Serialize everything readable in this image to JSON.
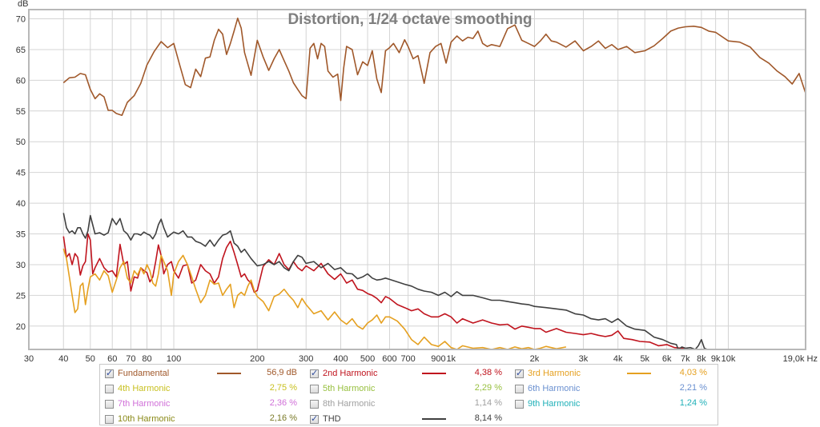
{
  "chart_data": {
    "type": "line",
    "title": "Distortion, 1/24 octave smoothing",
    "xlabel": "Hz",
    "ylabel": "dB",
    "xscale": "log",
    "xlim": [
      30,
      19000
    ],
    "ylim": [
      16.2,
      71.5
    ],
    "grid": true,
    "x_ticks": [
      30,
      40,
      50,
      60,
      70,
      80,
      90,
      100,
      200,
      300,
      400,
      500,
      600,
      700,
      900,
      1000,
      2000,
      3000,
      4000,
      5000,
      6000,
      7000,
      8000,
      9000,
      10000,
      19000
    ],
    "x_tick_labels": [
      "30",
      "40",
      "50",
      "60",
      "70",
      "80",
      "",
      "100",
      "200",
      "300",
      "400",
      "500",
      "600",
      "700",
      "900",
      "1k",
      "2k",
      "3k",
      "4k",
      "5k",
      "6k",
      "7k",
      "8k",
      "9k",
      "10k",
      "19,0k Hz"
    ],
    "y_ticks": [
      20,
      25,
      30,
      35,
      40,
      45,
      50,
      55,
      60,
      65,
      70
    ],
    "y_tick_labels": [
      "20",
      "25",
      "30",
      "35",
      "40",
      "45",
      "50",
      "55",
      "60",
      "65",
      "70"
    ],
    "series": [
      {
        "name": "Fundamental",
        "color": "#a0582a",
        "x": [
          40,
          42,
          44,
          46,
          48,
          50,
          52,
          54,
          56,
          58,
          60,
          62,
          65,
          68,
          72,
          76,
          80,
          85,
          90,
          95,
          100,
          105,
          110,
          115,
          120,
          125,
          130,
          135,
          140,
          145,
          150,
          155,
          160,
          165,
          170,
          175,
          180,
          190,
          200,
          210,
          220,
          230,
          240,
          250,
          260,
          270,
          280,
          290,
          300,
          310,
          320,
          330,
          340,
          350,
          360,
          375,
          390,
          400,
          410,
          420,
          440,
          460,
          480,
          500,
          520,
          540,
          560,
          580,
          600,
          620,
          650,
          680,
          700,
          730,
          760,
          800,
          840,
          880,
          920,
          960,
          1000,
          1050,
          1100,
          1150,
          1200,
          1250,
          1300,
          1350,
          1400,
          1500,
          1600,
          1700,
          1800,
          1900,
          2000,
          2100,
          2200,
          2300,
          2400,
          2600,
          2800,
          3000,
          3200,
          3400,
          3600,
          3800,
          4000,
          4300,
          4600,
          5000,
          5400,
          5800,
          6200,
          6600,
          7000,
          7500,
          8000,
          8500,
          9000,
          10000,
          11000,
          12000,
          13000,
          14000,
          15000,
          16000,
          17000,
          18000,
          19000
        ],
        "y": [
          59.6,
          60.4,
          60.5,
          61.1,
          60.9,
          58.5,
          57.0,
          57.8,
          57.3,
          55.1,
          55.1,
          54.6,
          54.3,
          56.4,
          57.5,
          59.5,
          62.5,
          64.7,
          66.3,
          65.3,
          66.0,
          62.5,
          59.3,
          58.8,
          61.8,
          60.6,
          63.6,
          63.8,
          66.5,
          68.3,
          67.5,
          64.2,
          66.0,
          68.0,
          70.1,
          68.5,
          64.5,
          60.8,
          66.5,
          63.8,
          61.6,
          63.5,
          65.0,
          63.2,
          61.5,
          59.6,
          58.5,
          57.5,
          57.0,
          65.2,
          66.0,
          63.5,
          66.0,
          65.5,
          61.5,
          60.5,
          61.0,
          56.7,
          62.0,
          65.5,
          65.0,
          60.9,
          63.0,
          62.4,
          64.8,
          60.2,
          58.0,
          64.8,
          65.3,
          66.0,
          64.5,
          66.6,
          65.5,
          63.5,
          64.0,
          59.5,
          64.5,
          65.5,
          66.0,
          62.8,
          66.2,
          67.2,
          66.4,
          67.0,
          66.8,
          68.0,
          66.0,
          65.5,
          65.8,
          65.5,
          68.4,
          69.0,
          66.5,
          66.0,
          65.5,
          66.4,
          67.5,
          66.4,
          66.2,
          65.4,
          66.4,
          64.8,
          65.5,
          66.4,
          65.2,
          65.8,
          65.0,
          65.5,
          64.5,
          64.8,
          65.6,
          66.8,
          68.0,
          68.5,
          68.7,
          68.8,
          68.6,
          68.0,
          67.8,
          66.4,
          66.2,
          65.4,
          63.7,
          62.8,
          61.5,
          60.6,
          59.4,
          61.1,
          57.9
        ]
      },
      {
        "name": "2nd Harmonic",
        "color": "#c0141e",
        "x": [
          40,
          41,
          42,
          43,
          44,
          45,
          46,
          47,
          48,
          49,
          50,
          51,
          52,
          54,
          56,
          58,
          60,
          62,
          64,
          66,
          68,
          70,
          72,
          74,
          76,
          78,
          80,
          82,
          84,
          86,
          88,
          90,
          92,
          95,
          98,
          100,
          104,
          108,
          112,
          116,
          120,
          125,
          130,
          135,
          140,
          145,
          150,
          155,
          160,
          165,
          170,
          175,
          180,
          185,
          190,
          195,
          200,
          210,
          220,
          230,
          240,
          250,
          260,
          270,
          280,
          290,
          300,
          320,
          340,
          360,
          380,
          400,
          420,
          440,
          460,
          480,
          500,
          520,
          540,
          560,
          580,
          600,
          640,
          680,
          720,
          760,
          800,
          850,
          900,
          950,
          1000,
          1050,
          1100,
          1200,
          1300,
          1400,
          1500,
          1600,
          1700,
          1800,
          1900,
          2000,
          2100,
          2200,
          2400,
          2600,
          2800,
          3000,
          3200,
          3400,
          3600,
          3800,
          4000,
          4200,
          4500,
          4800,
          5200,
          5600,
          6000,
          6400,
          6800,
          7200
        ],
        "y": [
          34.6,
          31.2,
          31.8,
          30.0,
          31.8,
          31.2,
          28.3,
          29.8,
          30.5,
          35.0,
          34.0,
          28.5,
          29.5,
          31.0,
          29.5,
          28.8,
          29.0,
          28.0,
          33.3,
          30.0,
          30.5,
          25.7,
          28.0,
          27.8,
          29.5,
          29.0,
          28.7,
          27.2,
          28.0,
          30.5,
          33.2,
          31.5,
          28.5,
          30.0,
          30.5,
          29.0,
          27.8,
          29.8,
          30.0,
          27.0,
          27.5,
          30.0,
          29.0,
          28.5,
          27.0,
          28.0,
          31.0,
          32.8,
          33.8,
          32.0,
          30.0,
          28.0,
          28.5,
          27.5,
          27.0,
          25.5,
          25.8,
          29.7,
          30.8,
          30.0,
          31.8,
          30.0,
          29.2,
          30.5,
          29.5,
          29.0,
          29.8,
          29.0,
          30.2,
          28.5,
          27.6,
          28.5,
          27.0,
          27.5,
          26.0,
          25.8,
          25.3,
          25.0,
          24.5,
          23.8,
          24.8,
          24.5,
          23.5,
          23.0,
          22.5,
          22.8,
          22.0,
          21.5,
          21.5,
          22.0,
          21.5,
          20.5,
          21.2,
          20.5,
          21.0,
          20.5,
          20.2,
          20.3,
          19.5,
          20.0,
          19.8,
          19.6,
          19.6,
          19.0,
          19.6,
          19.0,
          18.8,
          18.6,
          18.8,
          18.5,
          18.3,
          18.5,
          19.2,
          18.0,
          17.8,
          17.5,
          17.4,
          16.8,
          17.0,
          16.5,
          16.4,
          16.2
        ]
      },
      {
        "name": "3rd Harmonic",
        "color": "#e5a020",
        "x": [
          40,
          41,
          42,
          43,
          44,
          45,
          46,
          47,
          48,
          49,
          50,
          52,
          54,
          56,
          58,
          60,
          62,
          64,
          66,
          68,
          70,
          72,
          74,
          76,
          78,
          80,
          82,
          84,
          86,
          88,
          90,
          92,
          95,
          98,
          100,
          104,
          108,
          112,
          116,
          120,
          125,
          130,
          135,
          140,
          145,
          150,
          155,
          160,
          165,
          170,
          175,
          180,
          185,
          190,
          195,
          200,
          210,
          220,
          230,
          240,
          250,
          260,
          270,
          280,
          290,
          300,
          320,
          340,
          360,
          380,
          400,
          420,
          440,
          460,
          480,
          500,
          520,
          540,
          560,
          580,
          600,
          640,
          680,
          720,
          760,
          800,
          850,
          900,
          950,
          1000,
          1050,
          1100,
          1200,
          1300,
          1400,
          1500,
          1600,
          1700,
          1800,
          1900,
          2000,
          2100,
          2200,
          2400,
          2600
        ],
        "y": [
          32.6,
          31.0,
          28.0,
          25.0,
          22.2,
          22.8,
          26.5,
          27.0,
          23.5,
          26.0,
          28.0,
          28.5,
          27.5,
          29.0,
          28.2,
          25.5,
          27.5,
          29.5,
          30.5,
          27.8,
          27.0,
          29.0,
          28.3,
          29.5,
          28.5,
          30.0,
          29.0,
          27.0,
          26.5,
          28.5,
          31.5,
          30.5,
          29.0,
          25.0,
          28.5,
          30.5,
          31.5,
          30.0,
          28.0,
          26.0,
          23.8,
          25.0,
          27.5,
          26.8,
          27.0,
          25.0,
          26.0,
          26.8,
          23.0,
          25.0,
          25.5,
          25.0,
          26.5,
          27.5,
          25.8,
          24.8,
          24.0,
          22.5,
          24.8,
          25.2,
          26.0,
          25.0,
          24.2,
          23.0,
          24.5,
          23.5,
          22.0,
          22.5,
          21.0,
          22.3,
          21.0,
          20.3,
          21.2,
          20.0,
          19.5,
          20.5,
          21.0,
          21.8,
          20.5,
          21.5,
          21.5,
          20.8,
          19.5,
          17.8,
          17.0,
          18.2,
          17.0,
          16.7,
          17.5,
          16.5,
          16.2,
          16.8,
          16.4,
          16.5,
          16.2,
          16.5,
          16.2,
          16.6,
          16.3,
          16.5,
          16.2,
          16.4,
          16.7,
          16.3,
          16.6
        ]
      },
      {
        "name": "THD",
        "color": "#404040",
        "x": [
          40,
          41,
          42,
          43,
          44,
          45,
          46,
          47,
          48,
          49,
          50,
          52,
          54,
          56,
          58,
          60,
          62,
          64,
          66,
          68,
          70,
          72,
          74,
          76,
          78,
          80,
          82,
          84,
          86,
          88,
          90,
          92,
          95,
          98,
          100,
          104,
          108,
          112,
          116,
          120,
          125,
          130,
          135,
          140,
          145,
          150,
          155,
          160,
          165,
          170,
          175,
          180,
          190,
          200,
          210,
          220,
          230,
          240,
          250,
          260,
          270,
          280,
          290,
          300,
          320,
          340,
          360,
          380,
          400,
          420,
          440,
          460,
          480,
          500,
          520,
          540,
          560,
          580,
          600,
          640,
          680,
          720,
          760,
          800,
          850,
          900,
          950,
          1000,
          1050,
          1100,
          1200,
          1300,
          1400,
          1500,
          1600,
          1700,
          1800,
          1900,
          2000,
          2200,
          2400,
          2600,
          2800,
          3000,
          3200,
          3400,
          3600,
          3800,
          4000,
          4300,
          4600,
          5000,
          5400,
          5800,
          6200,
          6500,
          6600,
          6800,
          7000,
          7300,
          7600,
          7800,
          8000,
          8200,
          8400
        ],
        "y": [
          38.4,
          36.0,
          35.2,
          35.5,
          35.0,
          36.0,
          36.0,
          35.0,
          34.3,
          35.5,
          38.0,
          35.0,
          35.2,
          34.8,
          35.2,
          37.5,
          36.5,
          37.5,
          35.5,
          35.0,
          34.0,
          35.0,
          35.0,
          34.8,
          35.3,
          35.0,
          34.8,
          34.2,
          35.0,
          36.5,
          37.4,
          36.0,
          34.5,
          35.0,
          35.3,
          35.0,
          35.5,
          34.5,
          34.5,
          33.8,
          33.5,
          33.0,
          34.0,
          33.0,
          34.0,
          34.8,
          35.0,
          35.5,
          33.5,
          33.0,
          32.0,
          32.5,
          31.0,
          29.8,
          30.0,
          30.5,
          30.0,
          30.5,
          29.5,
          29.0,
          30.5,
          31.5,
          31.2,
          30.2,
          30.5,
          29.5,
          30.2,
          29.2,
          29.5,
          28.6,
          28.5,
          27.7,
          28.0,
          28.5,
          27.8,
          27.5,
          27.6,
          27.8,
          27.6,
          27.2,
          26.8,
          26.5,
          26.0,
          25.7,
          25.5,
          25.0,
          25.5,
          24.8,
          25.6,
          25.0,
          25.0,
          24.6,
          24.2,
          24.2,
          24.0,
          23.8,
          23.6,
          23.5,
          23.2,
          23.0,
          22.8,
          22.6,
          22.0,
          21.8,
          21.2,
          21.0,
          21.2,
          20.6,
          21.2,
          20.0,
          19.5,
          19.3,
          18.2,
          17.8,
          17.2,
          17.0,
          16.2,
          16.6,
          16.4,
          16.5,
          16.2,
          16.8,
          17.8,
          16.4,
          16.2
        ]
      }
    ]
  },
  "legend": {
    "items": [
      {
        "label": "Fundamental",
        "value": "56,9 dB",
        "checked": true,
        "color": "#a0582a",
        "label_color": "#a0582a",
        "value_color": "#a0582a"
      },
      {
        "label": "2nd Harmonic",
        "value": "4,38 %",
        "checked": true,
        "color": "#c0141e",
        "label_color": "#c0141e",
        "value_color": "#c0141e"
      },
      {
        "label": "3rd Harmonic",
        "value": "4,03 %",
        "checked": true,
        "color": "#e5a020",
        "label_color": "#e5a020",
        "value_color": "#e5a020"
      },
      {
        "label": "4th Harmonic",
        "value": "2,75 %",
        "checked": false,
        "color": "#d0c830",
        "label_color": "#c8c020",
        "value_color": "#c8c020"
      },
      {
        "label": "5th Harmonic",
        "value": "2,29 %",
        "checked": false,
        "color": "#a0c850",
        "label_color": "#98c040",
        "value_color": "#98c040"
      },
      {
        "label": "6th Harmonic",
        "value": "2,21 %",
        "checked": false,
        "color": "#6a90d0",
        "label_color": "#6a90d0",
        "value_color": "#6a90d0"
      },
      {
        "label": "7th Harmonic",
        "value": "2,36 %",
        "checked": false,
        "color": "#e080e0",
        "label_color": "#d070d8",
        "value_color": "#d070d8"
      },
      {
        "label": "8th Harmonic",
        "value": "1,14 %",
        "checked": false,
        "color": "#a8a8a8",
        "label_color": "#a0a0a0",
        "value_color": "#a0a0a0"
      },
      {
        "label": "9th Harmonic",
        "value": "1,24 %",
        "checked": false,
        "color": "#20b8c0",
        "label_color": "#20b0b8",
        "value_color": "#20b0b8"
      },
      {
        "label": "10th Harmonic",
        "value": "2,16 %",
        "checked": false,
        "color": "#909020",
        "label_color": "#8a8a18",
        "value_color": "#7a7a28"
      },
      {
        "label": "THD",
        "value": "8,14 %",
        "checked": true,
        "color": "#404040",
        "label_color": "#404040",
        "value_color": "#404040"
      }
    ]
  }
}
